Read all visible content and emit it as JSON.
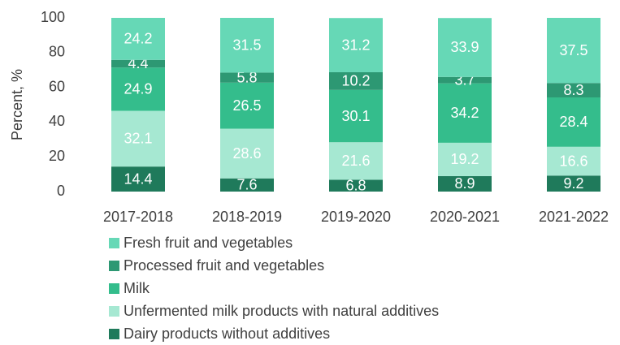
{
  "chart_data": {
    "type": "stacked_bar",
    "categories": [
      "2017-2018",
      "2018-2019",
      "2019-2020",
      "2020-2021",
      "2021-2022"
    ],
    "series": [
      {
        "name": "Fresh fruit and vegetables",
        "color": "#66d8b6",
        "values": [
          24.2,
          31.5,
          31.2,
          33.9,
          37.5
        ]
      },
      {
        "name": "Processed fruit and vegetables",
        "color": "#2d9873",
        "values": [
          4.4,
          5.8,
          10.2,
          3.7,
          8.3
        ]
      },
      {
        "name": "Milk",
        "color": "#34bd8c",
        "values": [
          24.9,
          26.5,
          30.1,
          34.2,
          28.4
        ]
      },
      {
        "name": "Unfermented milk products with natural additives",
        "color": "#a6e8d2",
        "values": [
          32.1,
          28.6,
          21.6,
          19.2,
          16.6
        ]
      },
      {
        "name": "Dairy products without additives",
        "color": "#1f7a5b",
        "values": [
          14.4,
          7.6,
          6.8,
          8.9,
          9.2
        ]
      }
    ],
    "y_label": "Percent, %",
    "ylim": [
      0,
      100
    ],
    "yticks": [
      0,
      20,
      40,
      60,
      80,
      100
    ],
    "grid": false
  }
}
